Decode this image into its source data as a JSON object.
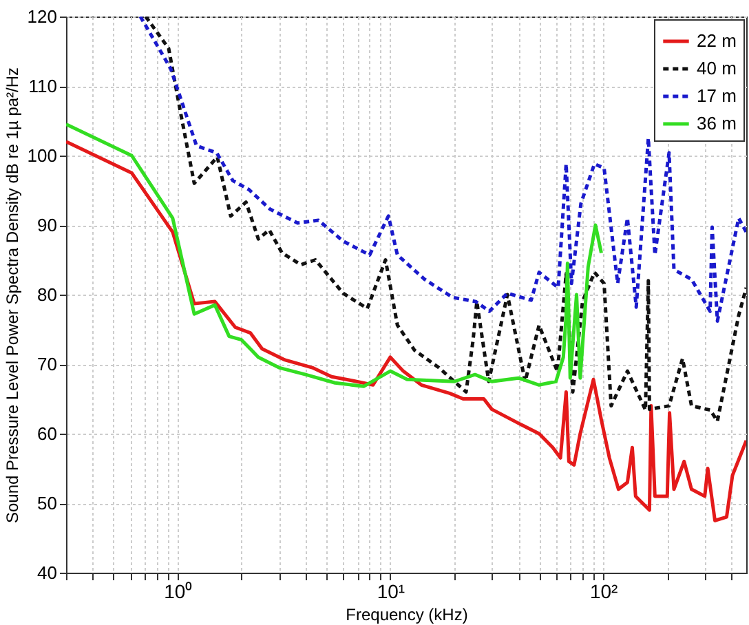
{
  "chart_data": {
    "type": "line",
    "xlabel": "Frequency (kHz)",
    "ylabel": "Sound Pressure Level Power Spectra Density dB re 1µ pa²/Hz",
    "xlim": [
      0.3,
      470
    ],
    "ylim": [
      40,
      120
    ],
    "log": "x",
    "grid": true,
    "legend": "top right",
    "marker": "none",
    "xticks": [
      {
        "value": 0.3,
        "label": null
      },
      {
        "value": 0.4,
        "label": null
      },
      {
        "value": 0.5,
        "label": null
      },
      {
        "value": 0.6,
        "label": null
      },
      {
        "value": 0.7,
        "label": null
      },
      {
        "value": 0.8,
        "label": null
      },
      {
        "value": 0.9,
        "label": null
      },
      {
        "value": 1,
        "label": "10⁰"
      },
      {
        "value": 2,
        "label": null
      },
      {
        "value": 3,
        "label": null
      },
      {
        "value": 4,
        "label": null
      },
      {
        "value": 5,
        "label": null
      },
      {
        "value": 6,
        "label": null
      },
      {
        "value": 7,
        "label": null
      },
      {
        "value": 8,
        "label": null
      },
      {
        "value": 9,
        "label": null
      },
      {
        "value": 10,
        "label": "10¹"
      },
      {
        "value": 20,
        "label": null
      },
      {
        "value": 30,
        "label": null
      },
      {
        "value": 40,
        "label": null
      },
      {
        "value": 50,
        "label": null
      },
      {
        "value": 60,
        "label": null
      },
      {
        "value": 70,
        "label": null
      },
      {
        "value": 80,
        "label": null
      },
      {
        "value": 90,
        "label": null
      },
      {
        "value": 100,
        "label": "10²"
      },
      {
        "value": 200,
        "label": null
      },
      {
        "value": 300,
        "label": null
      },
      {
        "value": 400,
        "label": null
      }
    ],
    "yticks": [
      40,
      50,
      60,
      70,
      80,
      90,
      100,
      110,
      120
    ],
    "series": [
      {
        "name": "22 m",
        "color": "#e41a1a",
        "line_style": "solid",
        "x": [
          0.3,
          0.61,
          0.95,
          1.2,
          1.5,
          1.87,
          2.2,
          2.5,
          3.2,
          4.3,
          5.3,
          6.7,
          8.3,
          10,
          11.5,
          14,
          19,
          22,
          27.5,
          30,
          40,
          50,
          58,
          63,
          67,
          69,
          73,
          78,
          90,
          98,
          107,
          118,
          130,
          137,
          142,
          165,
          168,
          175,
          200,
          205,
          215,
          240,
          260,
          300,
          310,
          335,
          380,
          405,
          470
        ],
        "values": [
          102,
          97.5,
          89,
          78.7,
          79,
          75.3,
          74.5,
          72.2,
          70.6,
          69.5,
          68.2,
          67.6,
          67,
          71,
          69,
          67,
          65.8,
          65,
          65,
          63.5,
          61.5,
          60,
          58,
          56.5,
          66,
          56,
          55.5,
          60,
          67.8,
          62,
          56.5,
          52,
          53,
          58,
          51,
          49,
          64,
          51,
          51,
          63,
          52,
          56,
          52,
          51,
          55,
          47.5,
          48,
          54,
          59
        ]
      },
      {
        "name": "40 m",
        "color": "#111111",
        "line_style": "dashed",
        "x": [
          0.71,
          0.91,
          1.03,
          1.2,
          1.54,
          1.78,
          2.1,
          2.4,
          2.7,
          3.1,
          3.8,
          4.45,
          6,
          7.8,
          9.5,
          10.8,
          13,
          16.9,
          22.7,
          24.5,
          25.5,
          29,
          35.5,
          43,
          50,
          61,
          67,
          72,
          80,
          91,
          101,
          109,
          130,
          158,
          163,
          165,
          204,
          236,
          260,
          318,
          344,
          433,
          470
        ],
        "values": [
          120,
          115.4,
          106.5,
          96,
          99.8,
          91.3,
          93.3,
          88,
          89.3,
          86,
          84.3,
          85,
          80.2,
          78,
          85,
          75.6,
          72,
          69.5,
          66,
          73.5,
          79,
          67.5,
          80,
          67.5,
          75.6,
          68.9,
          83,
          66,
          79,
          83.2,
          81.6,
          64,
          69,
          63.4,
          82,
          63.5,
          64,
          70.8,
          64,
          63.4,
          61.8,
          77,
          81
        ]
      },
      {
        "name": "17 m",
        "color": "#1a1acc",
        "line_style": "dashed",
        "x": [
          0.67,
          0.93,
          1.23,
          1.53,
          1.82,
          2.17,
          2.72,
          3.67,
          4.6,
          6,
          8,
          9.8,
          10.8,
          14.5,
          19.6,
          25.2,
          29.2,
          35.5,
          45.9,
          50,
          61.5,
          67,
          71,
          78.6,
          91,
          101,
          117,
          130,
          143,
          163,
          175,
          204,
          215,
          260,
          318,
          325,
          344,
          433,
          470
        ],
        "values": [
          120,
          112.5,
          101.4,
          100.4,
          96.4,
          95.1,
          92.3,
          90.3,
          90.7,
          87.7,
          85.7,
          91.3,
          85.7,
          82.2,
          79.6,
          79,
          77.6,
          80.2,
          79.2,
          83.2,
          81,
          98.8,
          81.6,
          93.1,
          98.8,
          98.2,
          81.6,
          91,
          78.2,
          102.5,
          85.7,
          100.4,
          83.6,
          82.2,
          77.6,
          89.7,
          76.2,
          91,
          89
        ]
      },
      {
        "name": "36 m",
        "color": "#33dd22",
        "line_style": "solid",
        "x": [
          0.3,
          0.61,
          0.95,
          1.2,
          1.5,
          1.75,
          2,
          2.4,
          3,
          4,
          5.5,
          7.5,
          10,
          12,
          20,
          25,
          30,
          40,
          50,
          60,
          65,
          67,
          68,
          70,
          75,
          78,
          85,
          92,
          98
        ],
        "values": [
          104.5,
          100,
          91,
          77.2,
          78.5,
          74,
          73.5,
          71,
          69.5,
          68.5,
          67.3,
          66.8,
          69,
          67.8,
          67.5,
          68.5,
          67.5,
          68,
          67,
          67.5,
          71,
          77,
          84.5,
          68,
          80,
          68,
          84,
          90,
          86
        ]
      }
    ]
  }
}
